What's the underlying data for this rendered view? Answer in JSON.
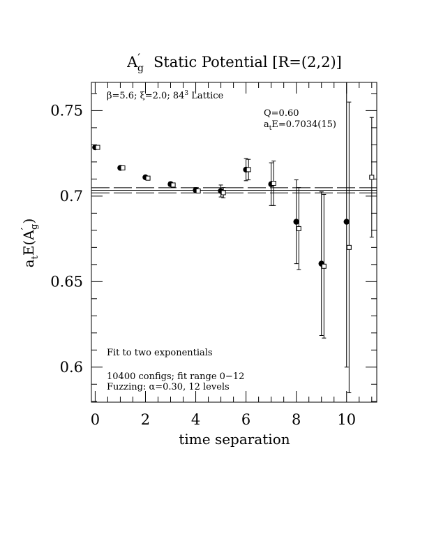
{
  "chart_data": {
    "type": "scatter",
    "title": "A′g Static Potential [R=(2,2)]",
    "title_parts": {
      "base": "A",
      "prime": "′",
      "sub": "g",
      "rest": "Static Potential [R=(2,2)]"
    },
    "xlabel": "time separation",
    "ylabel_parts": {
      "a": "a",
      "t": "t",
      "E": "E(A",
      "prime": "′",
      "g": "g",
      "close": ")"
    },
    "xlim": [
      -0.15,
      11.2
    ],
    "ylim": [
      0.5795,
      0.7665
    ],
    "x_ticks": [
      0,
      2,
      4,
      6,
      8,
      10
    ],
    "x_tick_labels": [
      "0",
      "2",
      "4",
      "6",
      "8",
      "10"
    ],
    "y_ticks": [
      0.6,
      0.65,
      0.7,
      0.75
    ],
    "y_tick_labels": [
      "0.6",
      "0.65",
      "0.7",
      "0.75"
    ],
    "grid": false,
    "annotations": {
      "lattice": {
        "beta": "β=5.6; ξ=2.0; 84",
        "sup": "3",
        "rest": " Lattice"
      },
      "q": "Q=0.60",
      "fit_energy": {
        "a": "a",
        "t": "t",
        "rest": "E=0.7034(15)"
      },
      "fit_type": "Fit to two exponentials",
      "configs": "10400 configs; fit range 0−12",
      "fuzzing": "Fuzzing: α=0.30, 12 levels"
    },
    "fit_band": {
      "center": 0.7034,
      "error": 0.0015,
      "xmin": -0.15,
      "xmax": 11.2
    },
    "series": [
      {
        "marker": "filled-circle",
        "x": [
          0,
          1,
          2,
          3,
          4,
          5,
          6,
          7,
          8,
          9,
          10
        ],
        "y": [
          0.7285,
          0.7165,
          0.711,
          0.707,
          0.7035,
          0.703,
          0.7155,
          0.707,
          0.685,
          0.6605,
          0.685
        ],
        "err": [
          0.0005,
          0.0008,
          0.001,
          0.0012,
          0.0015,
          0.0035,
          0.0065,
          0.0125,
          0.0245,
          0.042,
          0.085
        ]
      },
      {
        "marker": "open-square",
        "x": [
          0.1,
          1.1,
          2.1,
          3.1,
          4.1,
          5.1,
          6.1,
          7.1,
          8.1,
          9.1,
          10.1,
          11.0
        ],
        "y": [
          0.7285,
          0.7165,
          0.7105,
          0.7065,
          0.703,
          0.702,
          0.7155,
          0.7075,
          0.681,
          0.659,
          0.67,
          0.711
        ],
        "err": [
          0.0004,
          0.0006,
          0.0008,
          0.001,
          0.0012,
          0.003,
          0.006,
          0.013,
          0.024,
          0.042,
          0.085,
          0.035
        ]
      }
    ]
  }
}
